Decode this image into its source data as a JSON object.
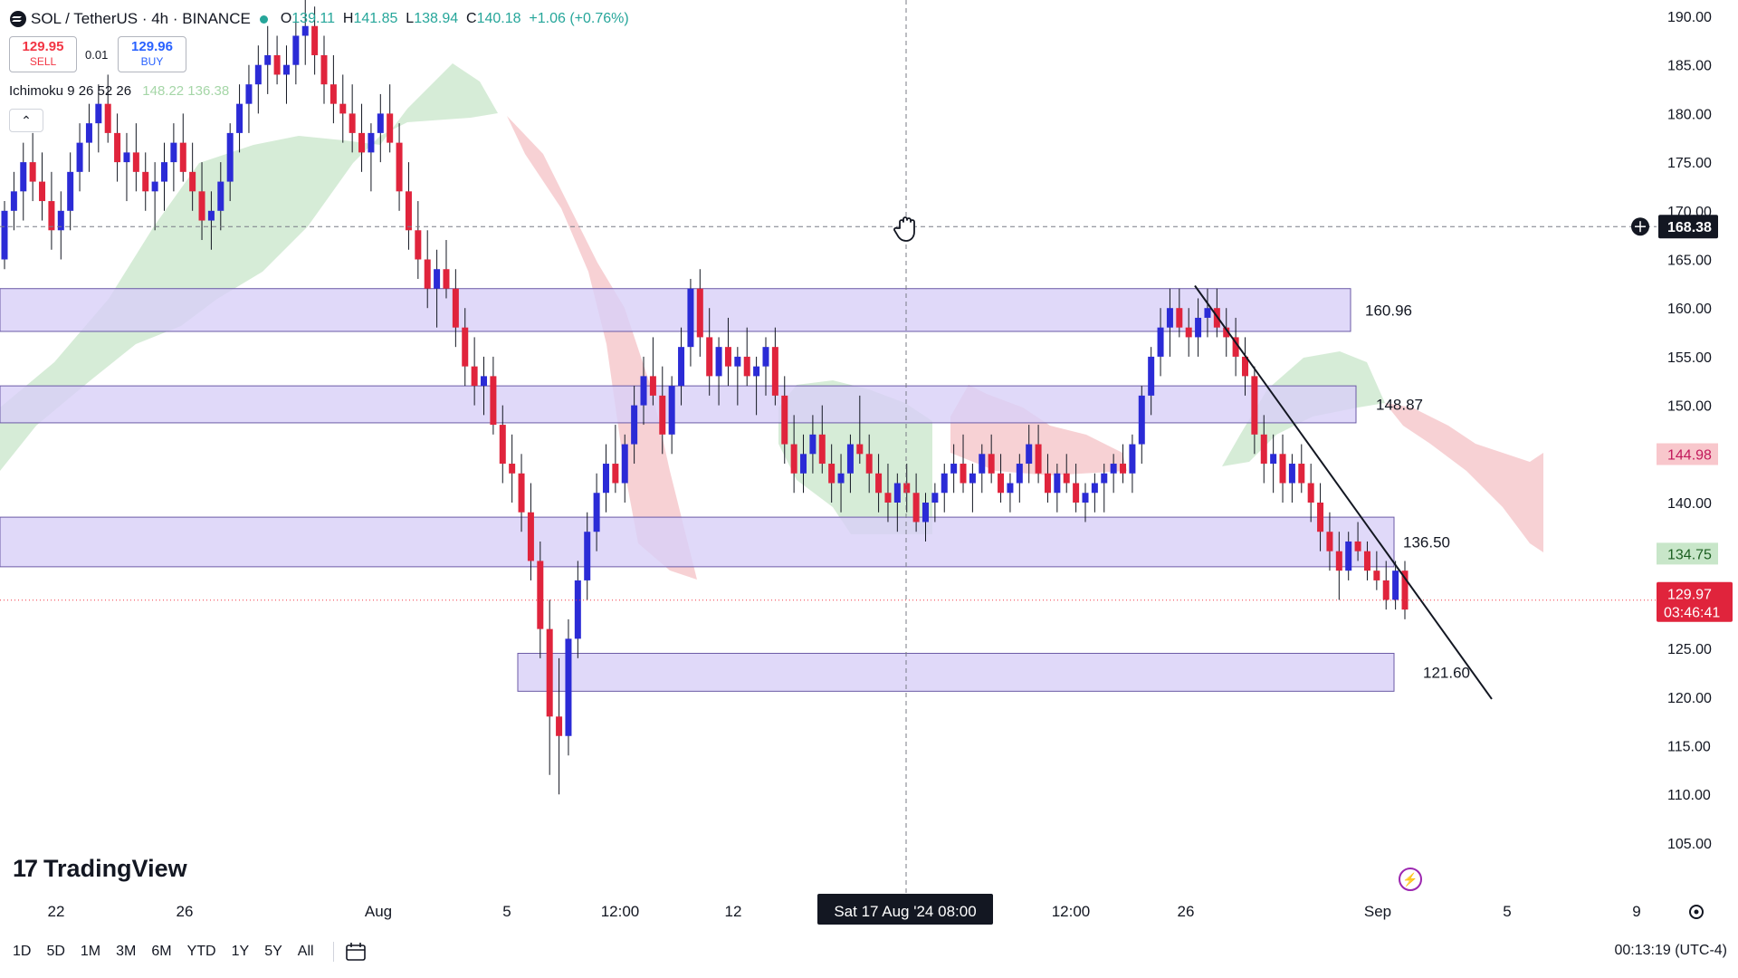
{
  "header": {
    "symbol": "SOL / TetherUS · 4h · BINANCE",
    "ohlc_prefix_o": "O",
    "open": "139.11",
    "ohlc_prefix_h": "H",
    "high": "141.85",
    "ohlc_prefix_l": "L",
    "low": "138.94",
    "ohlc_prefix_c": "C",
    "close": "140.18",
    "change": "+1.06 (+0.76%)"
  },
  "trade": {
    "sell_price": "129.95",
    "sell_label": "SELL",
    "spread": "0.01",
    "buy_price": "129.96",
    "buy_label": "BUY"
  },
  "indicator": {
    "name": "Ichimoku 9 26 52 26",
    "values": "148.22 136.38"
  },
  "brand": {
    "name": "TradingView"
  },
  "crosshair": {
    "price": "168.38",
    "time": "Sat 17 Aug '24   08:00"
  },
  "price_tags": {
    "last": "129.97",
    "countdown": "03:46:41",
    "green": "134.75",
    "red": "144.98"
  },
  "range_buttons": [
    "1D",
    "5D",
    "1M",
    "3M",
    "6M",
    "YTD",
    "1Y",
    "5Y",
    "All"
  ],
  "clock": "00:13:19 (UTC-4)",
  "icons": {
    "collapse": "chevron-up-icon",
    "calendar": "calendar-icon",
    "settings": "gear-icon",
    "bolt": "lightning-icon",
    "crosshair_add": "plus-circle-icon",
    "cursor": "grab-hand-icon"
  },
  "colors": {
    "up": "#2b2bd6",
    "down": "#e0243c",
    "zone": "#d8cff7",
    "cloud_bull": "#c8e6c9",
    "cloud_bear": "#f4c2c6",
    "label_green": "#26a69a",
    "label_red": "#f23645"
  },
  "chart_data": {
    "type": "candlestick",
    "y_axis": {
      "min": 100,
      "max": 192,
      "ticks": [
        190,
        185,
        180,
        175,
        170,
        165,
        160,
        155,
        150,
        145,
        140,
        135,
        130,
        125,
        120,
        115,
        110,
        105
      ]
    },
    "x_ticks": [
      "22",
      "26",
      "Aug",
      "5",
      "12:00",
      "12",
      "12:00",
      "26",
      "Sep",
      "5",
      "9"
    ],
    "zones": [
      {
        "top": 162,
        "bottom": 157.6,
        "label": "160.96"
      },
      {
        "top": 152,
        "bottom": 148.2,
        "label": "148.87"
      },
      {
        "top": 138.5,
        "bottom": 133.4,
        "label": "136.50"
      },
      {
        "top": 124.5,
        "bottom": 120.6,
        "label": "121.60"
      }
    ],
    "trendline": {
      "from": [
        "Aug 25",
        162.3
      ],
      "to": [
        "Sep 6",
        119.8
      ]
    },
    "candles": [
      [
        165,
        171,
        164,
        170
      ],
      [
        170,
        174,
        168,
        172
      ],
      [
        172,
        177,
        169,
        175
      ],
      [
        175,
        178,
        171,
        173
      ],
      [
        173,
        176,
        169,
        171
      ],
      [
        171,
        174,
        166,
        168
      ],
      [
        168,
        172,
        165,
        170
      ],
      [
        170,
        176,
        168,
        174
      ],
      [
        174,
        179,
        172,
        177
      ],
      [
        177,
        181,
        174,
        179
      ],
      [
        179,
        183,
        176,
        181
      ],
      [
        181,
        184,
        177,
        178
      ],
      [
        178,
        180,
        173,
        175
      ],
      [
        175,
        178,
        171,
        176
      ],
      [
        176,
        179,
        172,
        174
      ],
      [
        174,
        176,
        170,
        172
      ],
      [
        172,
        175,
        168,
        173
      ],
      [
        173,
        177,
        170,
        175
      ],
      [
        175,
        179,
        172,
        177
      ],
      [
        177,
        180,
        173,
        174
      ],
      [
        174,
        177,
        170,
        172
      ],
      [
        172,
        175,
        167,
        169
      ],
      [
        169,
        172,
        166,
        170
      ],
      [
        170,
        175,
        168,
        173
      ],
      [
        173,
        179,
        171,
        178
      ],
      [
        178,
        183,
        176,
        181
      ],
      [
        181,
        185,
        178,
        183
      ],
      [
        183,
        187,
        180,
        185
      ],
      [
        185,
        189,
        182,
        186
      ],
      [
        186,
        188,
        183,
        184
      ],
      [
        184,
        187,
        181,
        185
      ],
      [
        185,
        190,
        183,
        188
      ],
      [
        188,
        192,
        185,
        189
      ],
      [
        189,
        191,
        184,
        186
      ],
      [
        186,
        188,
        181,
        183
      ],
      [
        183,
        186,
        179,
        181
      ],
      [
        181,
        184,
        177,
        180
      ],
      [
        180,
        183,
        176,
        178
      ],
      [
        178,
        181,
        174,
        176
      ],
      [
        176,
        179,
        172,
        178
      ],
      [
        178,
        182,
        175,
        180
      ],
      [
        180,
        183,
        176,
        177
      ],
      [
        177,
        179,
        170,
        172
      ],
      [
        172,
        175,
        166,
        168
      ],
      [
        168,
        171,
        163,
        165
      ],
      [
        165,
        168,
        160,
        162
      ],
      [
        162,
        166,
        158,
        164
      ],
      [
        164,
        167,
        161,
        162
      ],
      [
        162,
        164,
        156,
        158
      ],
      [
        158,
        160,
        152,
        154
      ],
      [
        154,
        157,
        150,
        152
      ],
      [
        152,
        155,
        149,
        153
      ],
      [
        153,
        155,
        147,
        148
      ],
      [
        148,
        150,
        142,
        144
      ],
      [
        144,
        147,
        140,
        143
      ],
      [
        143,
        145,
        137,
        139
      ],
      [
        139,
        142,
        132,
        134
      ],
      [
        134,
        136,
        124,
        127
      ],
      [
        127,
        130,
        112,
        118
      ],
      [
        118,
        124,
        110,
        116
      ],
      [
        116,
        128,
        114,
        126
      ],
      [
        126,
        134,
        124,
        132
      ],
      [
        132,
        139,
        130,
        137
      ],
      [
        137,
        143,
        135,
        141
      ],
      [
        141,
        146,
        139,
        144
      ],
      [
        144,
        148,
        141,
        142
      ],
      [
        142,
        147,
        140,
        146
      ],
      [
        146,
        152,
        144,
        150
      ],
      [
        150,
        155,
        148,
        153
      ],
      [
        153,
        157,
        150,
        151
      ],
      [
        151,
        154,
        145,
        147
      ],
      [
        147,
        153,
        145,
        152
      ],
      [
        152,
        158,
        150,
        156
      ],
      [
        156,
        163,
        154,
        162
      ],
      [
        162,
        164,
        155,
        157
      ],
      [
        157,
        160,
        151,
        153
      ],
      [
        153,
        157,
        150,
        156
      ],
      [
        156,
        159,
        152,
        154
      ],
      [
        154,
        156,
        150,
        155
      ],
      [
        155,
        158,
        152,
        153
      ],
      [
        153,
        155,
        149,
        154
      ],
      [
        154,
        157,
        151,
        156
      ],
      [
        156,
        158,
        150,
        151
      ],
      [
        151,
        153,
        144,
        146
      ],
      [
        146,
        149,
        141,
        143
      ],
      [
        143,
        147,
        141,
        145
      ],
      [
        145,
        149,
        143,
        147
      ],
      [
        147,
        150,
        143,
        144
      ],
      [
        144,
        146,
        140,
        142
      ],
      [
        142,
        145,
        139,
        143
      ],
      [
        143,
        147,
        141,
        146
      ],
      [
        146,
        151,
        144,
        145
      ],
      [
        145,
        147,
        141,
        143
      ],
      [
        143,
        145,
        139,
        141
      ],
      [
        141,
        144,
        138,
        140
      ],
      [
        140,
        143,
        137,
        142
      ],
      [
        142,
        144,
        139,
        141
      ],
      [
        141,
        143,
        137,
        138
      ],
      [
        138,
        141,
        136,
        140
      ],
      [
        140,
        142,
        138,
        141
      ],
      [
        141,
        144,
        139,
        143
      ],
      [
        143,
        146,
        141,
        144
      ],
      [
        144,
        147,
        141,
        142
      ],
      [
        142,
        144,
        139,
        143
      ],
      [
        143,
        146,
        141,
        145
      ],
      [
        145,
        147,
        142,
        143
      ],
      [
        143,
        145,
        140,
        141
      ],
      [
        141,
        143,
        139,
        142
      ],
      [
        142,
        145,
        140,
        144
      ],
      [
        144,
        148,
        142,
        146
      ],
      [
        146,
        148,
        142,
        143
      ],
      [
        143,
        145,
        140,
        141
      ],
      [
        141,
        144,
        139,
        143
      ],
      [
        143,
        145,
        141,
        142
      ],
      [
        142,
        144,
        139,
        140
      ],
      [
        140,
        142,
        138,
        141
      ],
      [
        141,
        143,
        139,
        142
      ],
      [
        142,
        144,
        139,
        143
      ],
      [
        143,
        145,
        141,
        144
      ],
      [
        144,
        146,
        142,
        143
      ],
      [
        143,
        147,
        141,
        146
      ],
      [
        146,
        152,
        144,
        151
      ],
      [
        151,
        156,
        149,
        155
      ],
      [
        155,
        160,
        153,
        158
      ],
      [
        158,
        162,
        155,
        160
      ],
      [
        160,
        162,
        157,
        158
      ],
      [
        158,
        160,
        155,
        157
      ],
      [
        157,
        161,
        155,
        159
      ],
      [
        159,
        162,
        157,
        160
      ],
      [
        160,
        162,
        157,
        158
      ],
      [
        158,
        160,
        155,
        157
      ],
      [
        157,
        159,
        153,
        155
      ],
      [
        155,
        157,
        151,
        153
      ],
      [
        153,
        154,
        145,
        147
      ],
      [
        147,
        149,
        142,
        144
      ],
      [
        144,
        147,
        141,
        145
      ],
      [
        145,
        147,
        140,
        142
      ],
      [
        142,
        145,
        140,
        144
      ],
      [
        144,
        146,
        141,
        142
      ],
      [
        142,
        144,
        138,
        140
      ],
      [
        140,
        142,
        135,
        137
      ],
      [
        137,
        139,
        133,
        135
      ],
      [
        135,
        137,
        130,
        133
      ],
      [
        133,
        137,
        132,
        136
      ],
      [
        136,
        138,
        134,
        135
      ],
      [
        135,
        136,
        132,
        133
      ],
      [
        133,
        135,
        131,
        132
      ],
      [
        132,
        134,
        129,
        130
      ],
      [
        130,
        134,
        129,
        133
      ],
      [
        133,
        134,
        128,
        129
      ]
    ],
    "ichimoku_cloud": {
      "bull": "green",
      "bear": "red"
    }
  }
}
